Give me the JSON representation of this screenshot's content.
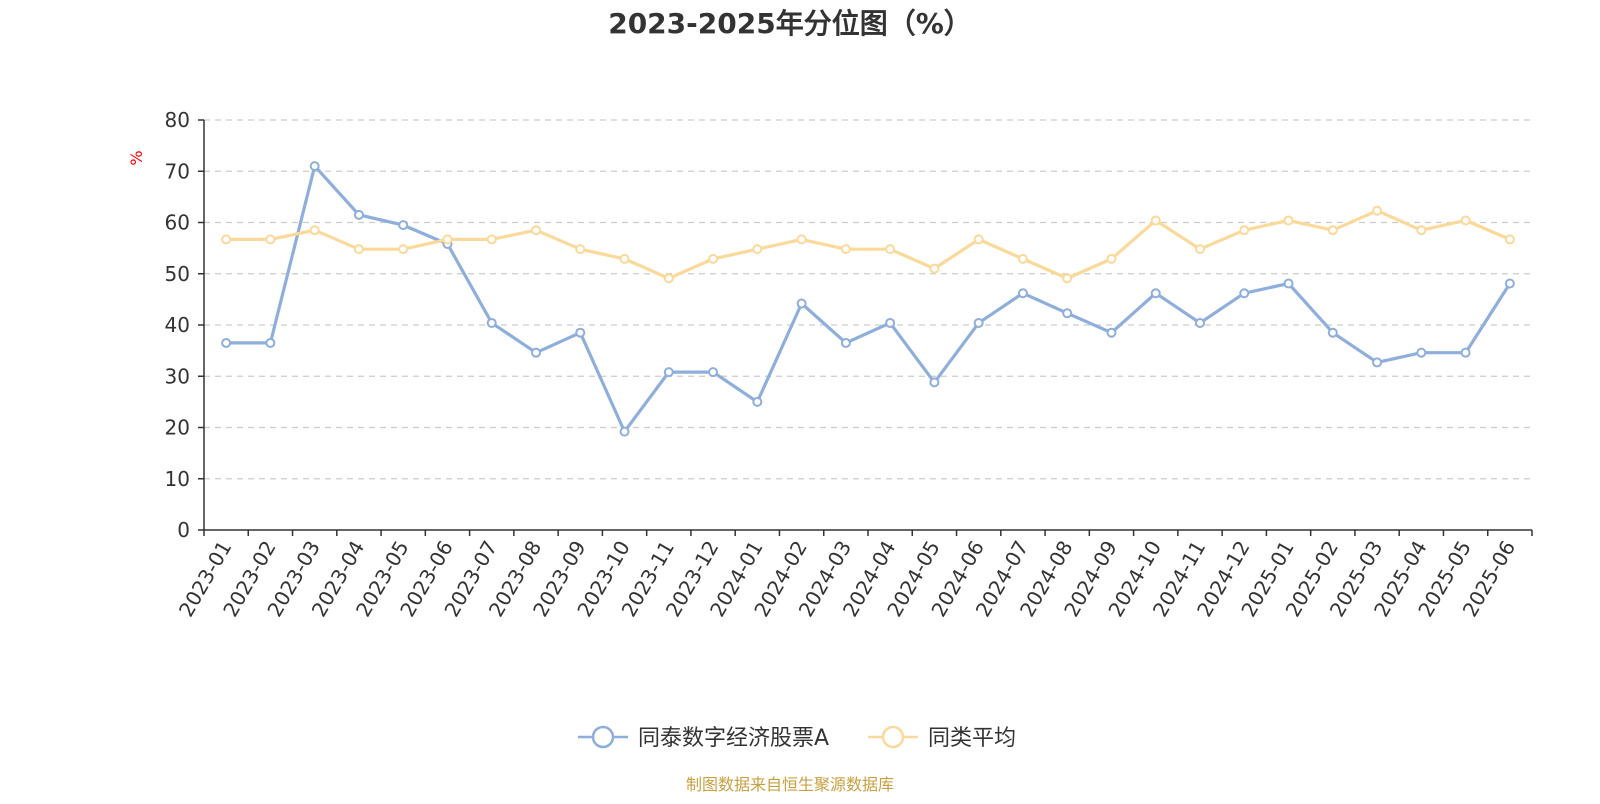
{
  "chart_data": {
    "type": "line",
    "title": "2023-2025年分位图（%）",
    "ylabel": "%",
    "ylim": [
      0,
      80
    ],
    "yticks": [
      "0",
      "10",
      "20",
      "30",
      "40",
      "50",
      "60",
      "70",
      "80"
    ],
    "grid": true,
    "legend_position": "bottom",
    "categories": [
      "2023-01",
      "2023-02",
      "2023-03",
      "2023-04",
      "2023-05",
      "2023-06",
      "2023-07",
      "2023-08",
      "2023-09",
      "2023-10",
      "2023-11",
      "2023-12",
      "2024-01",
      "2024-02",
      "2024-03",
      "2024-04",
      "2024-05",
      "2024-06",
      "2024-07",
      "2024-08",
      "2024-09",
      "2024-10",
      "2024-11",
      "2024-12",
      "2025-01",
      "2025-02",
      "2025-03",
      "2025-04",
      "2025-05",
      "2025-06"
    ],
    "series": [
      {
        "name": "同泰数字经济股票A",
        "color": "#8eaedb",
        "values": [
          36.5,
          36.5,
          71,
          61.5,
          59.5,
          55.8,
          40.4,
          34.6,
          38.5,
          19.2,
          30.8,
          30.8,
          25,
          44.2,
          36.5,
          40.4,
          28.8,
          40.4,
          46.2,
          42.3,
          38.5,
          46.2,
          40.4,
          46.2,
          48.1,
          38.5,
          32.7,
          34.6,
          34.6,
          48.1
        ]
      },
      {
        "name": "同类平均",
        "color": "#fbd99a",
        "values": [
          56.7,
          56.7,
          58.5,
          54.8,
          54.8,
          56.7,
          56.7,
          58.5,
          54.8,
          52.9,
          49.1,
          52.9,
          54.8,
          56.7,
          54.8,
          54.8,
          51,
          56.7,
          52.9,
          49.1,
          52.9,
          60.4,
          54.8,
          58.5,
          60.4,
          58.5,
          62.3,
          58.5,
          60.4,
          56.7
        ]
      }
    ]
  },
  "source": "制图数据来自恒生聚源数据库",
  "colors": {
    "axis": "#333333",
    "grid": "#cccccc",
    "unit": "#ff0000",
    "source": "#c8a040",
    "point_fill": "#ffffff"
  }
}
